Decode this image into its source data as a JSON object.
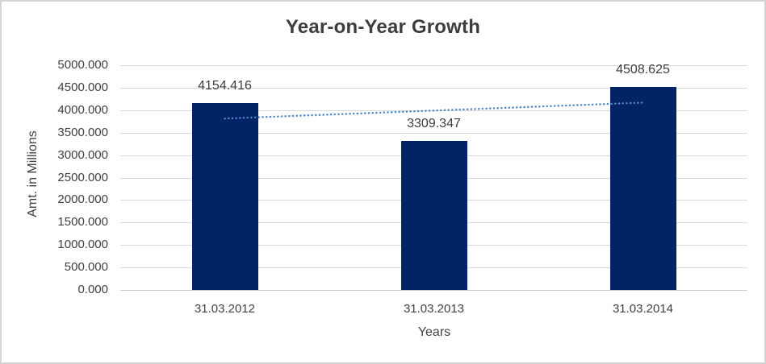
{
  "window": {
    "background": "#ffffff",
    "border_color": "#d4d4d4"
  },
  "chart_data": {
    "type": "bar",
    "title": "Year-on-Year Growth",
    "xlabel": "Years",
    "ylabel": "Amt. in Millions",
    "categories": [
      "31.03.2012",
      "31.03.2013",
      "31.03.2014"
    ],
    "values": [
      4154.416,
      3309.347,
      4508.625
    ],
    "data_labels": [
      "4154.416",
      "3309.347",
      "4508.625"
    ],
    "ylim": [
      0,
      5000
    ],
    "ytick_step": 500,
    "ytick_labels": [
      "0.000",
      "500.000",
      "1000.000",
      "1500.000",
      "2000.000",
      "2500.000",
      "3000.000",
      "3500.000",
      "4000.000",
      "4500.000",
      "5000.000"
    ],
    "grid": true,
    "legend": "none",
    "bar_color": "#022366",
    "gridline_color": "#d9d9d9",
    "axis_line_color": "#c9c9c9",
    "text_color": "#3f3f3f",
    "trendline": {
      "type": "linear",
      "style": "dotted",
      "color": "#4e86c6",
      "start_value": 3813.7,
      "end_value": 4167.9
    }
  }
}
